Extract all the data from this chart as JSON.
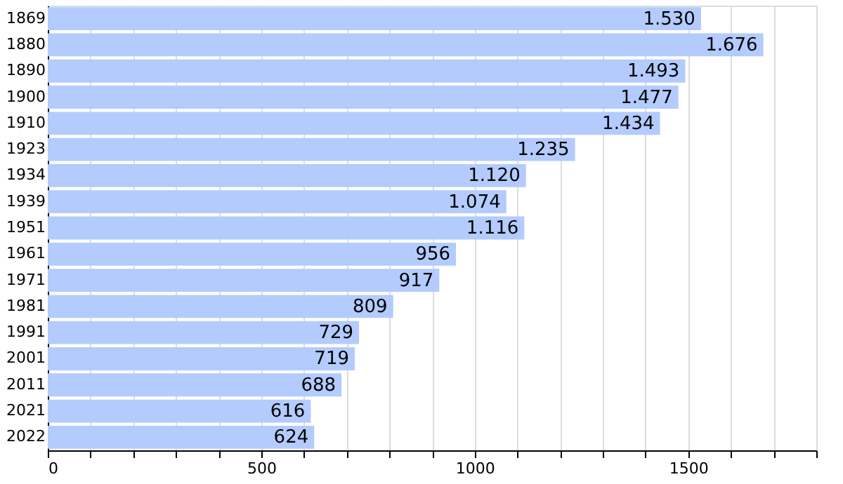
{
  "chart_data": {
    "type": "bar",
    "orientation": "horizontal",
    "categories": [
      "1869",
      "1880",
      "1890",
      "1900",
      "1910",
      "1923",
      "1934",
      "1939",
      "1951",
      "1961",
      "1971",
      "1981",
      "1991",
      "2001",
      "2011",
      "2021",
      "2022"
    ],
    "values": [
      1530,
      1676,
      1493,
      1477,
      1434,
      1235,
      1120,
      1074,
      1116,
      956,
      917,
      809,
      729,
      719,
      688,
      616,
      624
    ],
    "value_labels": [
      "1.530",
      "1.676",
      "1.493",
      "1.477",
      "1.434",
      "1.235",
      "1.120",
      "1.074",
      "1.116",
      "956",
      "917",
      "809",
      "729",
      "719",
      "688",
      "616",
      "624"
    ],
    "color": "#b3cbfd",
    "xlim": [
      0,
      1800
    ],
    "xticks": [
      0,
      {
        "value": 100,
        "label": null
      },
      {
        "value": 200,
        "label": null
      },
      {
        "value": 300,
        "label": null
      },
      {
        "value": 400,
        "label": null
      },
      500,
      {
        "value": 600,
        "label": null
      },
      {
        "value": 700,
        "label": null
      },
      {
        "value": 800,
        "label": null
      },
      {
        "value": 900,
        "label": null
      },
      1000,
      {
        "value": 1100,
        "label": null
      },
      {
        "value": 1200,
        "label": null
      },
      {
        "value": 1300,
        "label": null
      },
      {
        "value": 1400,
        "label": null
      },
      1500,
      {
        "value": 1600,
        "label": null
      },
      {
        "value": 1700,
        "label": null
      },
      {
        "value": 1800,
        "label": null
      }
    ],
    "grid": "x"
  }
}
